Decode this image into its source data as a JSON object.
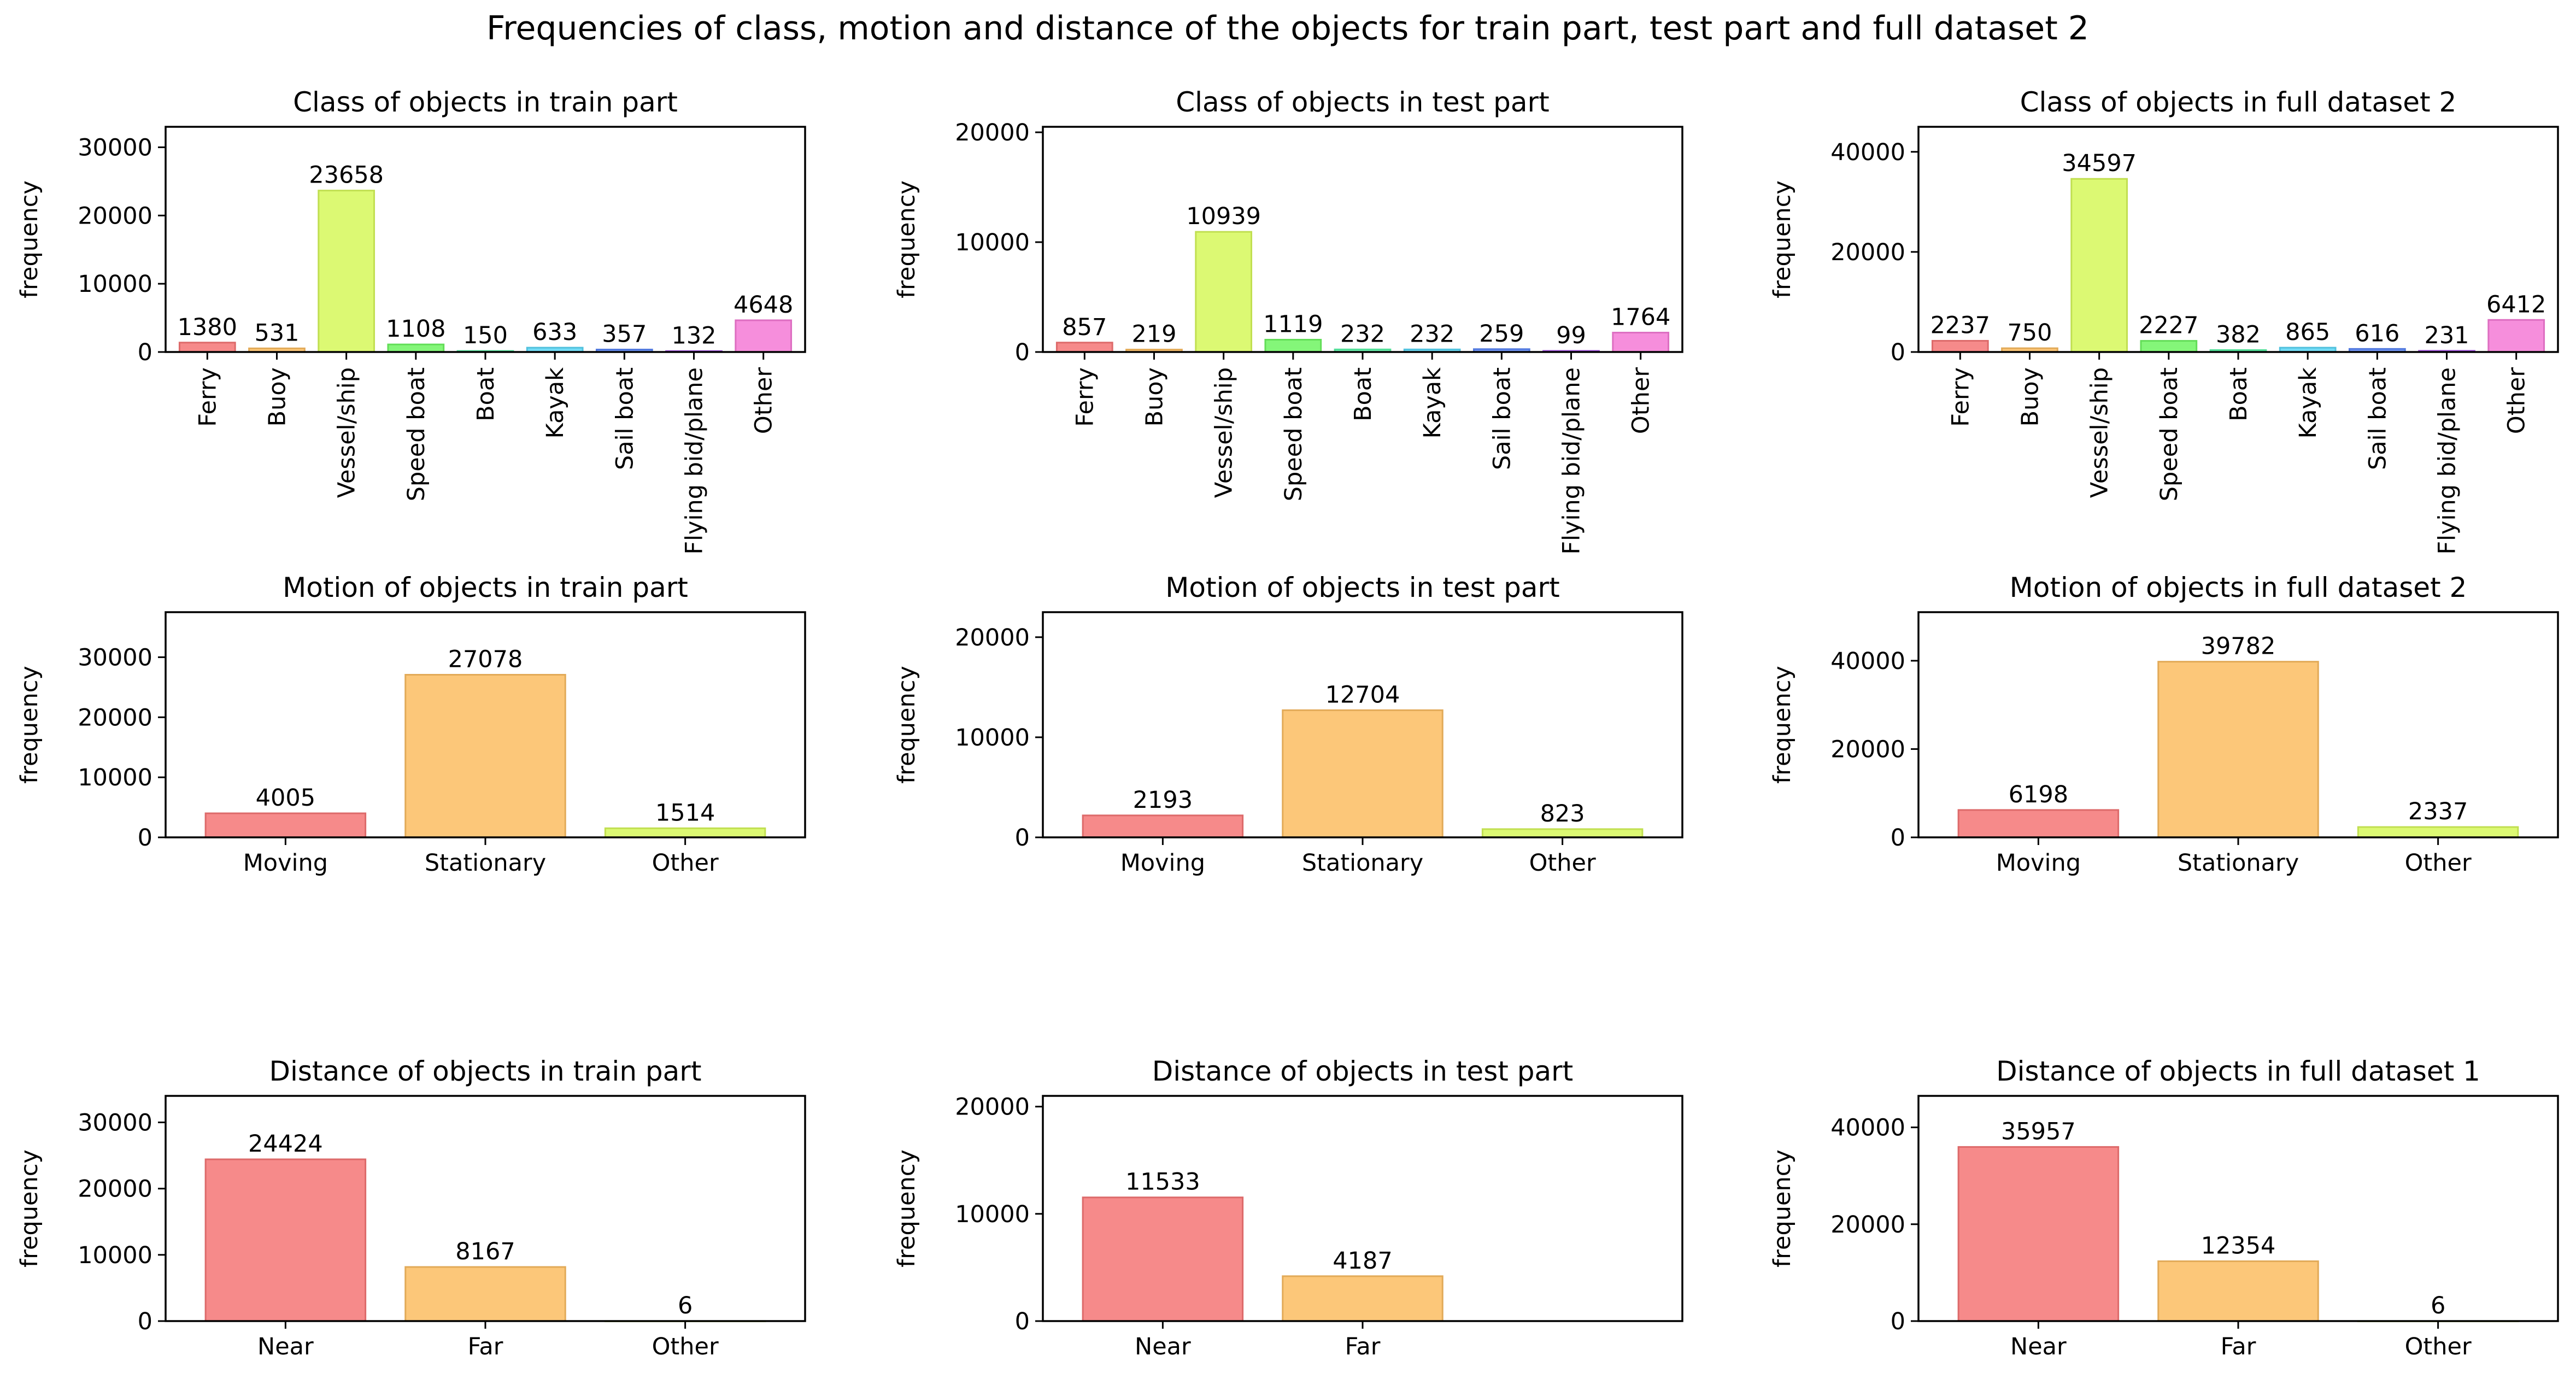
{
  "title": "Frequencies of class, motion and distance of the objects for train part, test part and full dataset 2",
  "colors": [
    "#f57676",
    "#fbbd62",
    "#d6f85a",
    "#6ef562",
    "#5af5a8",
    "#5ad6f5",
    "#5a85f5",
    "#b25af5",
    "#f57ad6"
  ],
  "chart_data": [
    {
      "type": "bar",
      "title": "Class of objects in train part",
      "ylabel": "frequency",
      "ylim": [
        0,
        33000
      ],
      "yticks": [
        0,
        10000,
        20000,
        30000
      ],
      "rotate_labels": true,
      "categories": [
        "Ferry",
        "Buoy",
        "Vessel/ship",
        "Speed boat",
        "Boat",
        "Kayak",
        "Sail boat",
        "Flying bid/plane",
        "Other"
      ],
      "values": [
        1380,
        531,
        23658,
        1108,
        150,
        633,
        357,
        132,
        4648
      ]
    },
    {
      "type": "bar",
      "title": "Class of objects in test part",
      "ylabel": "frequency",
      "ylim": [
        0,
        20500
      ],
      "yticks": [
        0,
        10000,
        20000
      ],
      "rotate_labels": true,
      "categories": [
        "Ferry",
        "Buoy",
        "Vessel/ship",
        "Speed boat",
        "Boat",
        "Kayak",
        "Sail boat",
        "Flying bid/plane",
        "Other"
      ],
      "values": [
        857,
        219,
        10939,
        1119,
        232,
        232,
        259,
        99,
        1764
      ]
    },
    {
      "type": "bar",
      "title": "Class of objects in full dataset 2",
      "ylabel": "frequency",
      "ylim": [
        0,
        45000
      ],
      "yticks": [
        0,
        20000,
        40000
      ],
      "rotate_labels": true,
      "categories": [
        "Ferry",
        "Buoy",
        "Vessel/ship",
        "Speed boat",
        "Boat",
        "Kayak",
        "Sail boat",
        "Flying bid/plane",
        "Other"
      ],
      "values": [
        2237,
        750,
        34597,
        2227,
        382,
        865,
        616,
        231,
        6412
      ]
    },
    {
      "type": "bar",
      "title": "Motion of objects in train part",
      "ylabel": "frequency",
      "ylim": [
        0,
        37500
      ],
      "yticks": [
        0,
        10000,
        20000,
        30000
      ],
      "rotate_labels": false,
      "categories": [
        "Moving",
        "Stationary",
        "Other"
      ],
      "values": [
        4005,
        27078,
        1514
      ]
    },
    {
      "type": "bar",
      "title": "Motion of objects in test part",
      "ylabel": "frequency",
      "ylim": [
        0,
        22500
      ],
      "yticks": [
        0,
        10000,
        20000
      ],
      "rotate_labels": false,
      "categories": [
        "Moving",
        "Stationary",
        "Other"
      ],
      "values": [
        2193,
        12704,
        823
      ]
    },
    {
      "type": "bar",
      "title": "Motion of objects in full dataset 2",
      "ylabel": "frequency",
      "ylim": [
        0,
        51000
      ],
      "yticks": [
        0,
        20000,
        40000
      ],
      "rotate_labels": false,
      "categories": [
        "Moving",
        "Stationary",
        "Other"
      ],
      "values": [
        6198,
        39782,
        2337
      ]
    },
    {
      "type": "bar",
      "title": "Distance of objects in train part",
      "ylabel": "frequency",
      "ylim": [
        0,
        34000
      ],
      "yticks": [
        0,
        10000,
        20000,
        30000
      ],
      "rotate_labels": false,
      "categories": [
        "Near",
        "Far",
        "Other"
      ],
      "values": [
        24424,
        8167,
        6
      ]
    },
    {
      "type": "bar",
      "title": "Distance of objects in test part",
      "ylabel": "frequency",
      "ylim": [
        0,
        21000
      ],
      "yticks": [
        0,
        10000,
        20000
      ],
      "rotate_labels": false,
      "categories": [
        "Near",
        "Far"
      ],
      "values": [
        11533,
        4187
      ]
    },
    {
      "type": "bar",
      "title": "Distance of objects in full dataset 1",
      "ylabel": "frequency",
      "ylim": [
        0,
        46500
      ],
      "yticks": [
        0,
        20000,
        40000
      ],
      "rotate_labels": false,
      "categories": [
        "Near",
        "Far",
        "Other"
      ],
      "values": [
        35957,
        12354,
        6
      ]
    }
  ]
}
